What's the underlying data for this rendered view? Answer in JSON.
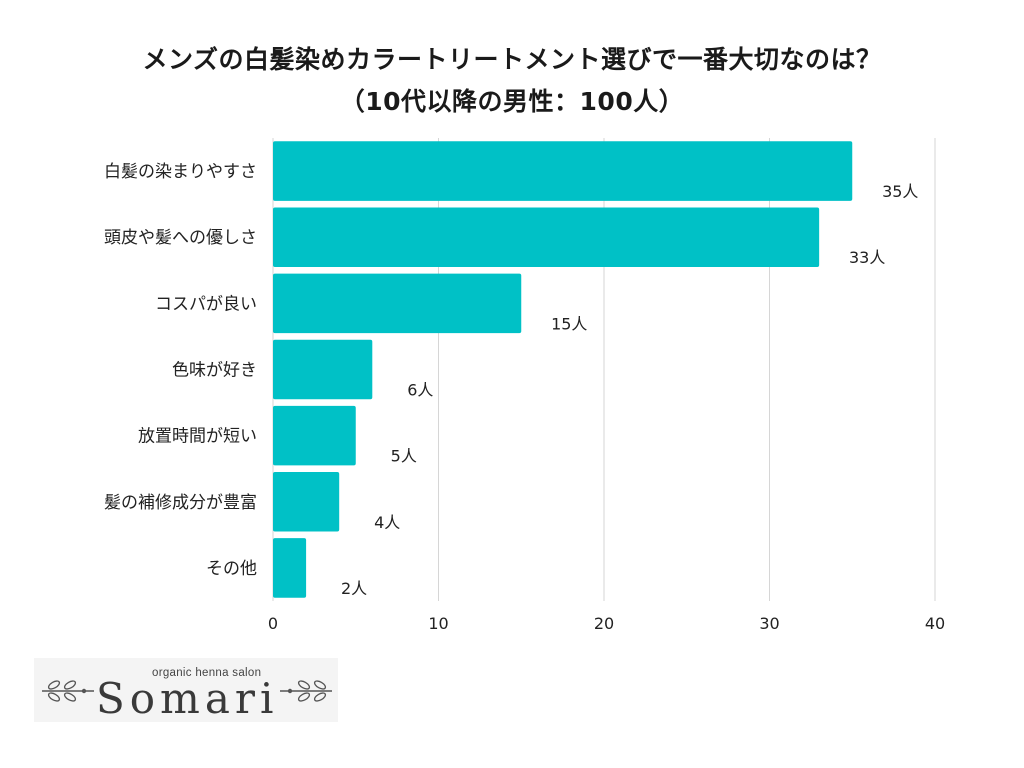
{
  "chart_data": {
    "type": "bar",
    "orientation": "horizontal",
    "title": "メンズの白髪染めカラートリートメント選びで一番大切なのは？",
    "subtitle": "（10代以降の男性：100人）",
    "categories": [
      "白髪の染まりやすさ",
      "頭皮や髪への優しさ",
      "コスパが良い",
      "色味が好き",
      "放置時間が短い",
      "髪の補修成分が豊富",
      "その他"
    ],
    "values": [
      35,
      33,
      15,
      6,
      5,
      4,
      2
    ],
    "value_labels": [
      "35人",
      "33人",
      "15人",
      "6人",
      "5人",
      "4人",
      "2人"
    ],
    "xlim": [
      0,
      40
    ],
    "xticks": [
      0,
      10,
      20,
      30,
      40
    ],
    "xtick_labels": [
      "0",
      "10",
      "20",
      "30",
      "40"
    ],
    "grid": true,
    "bar_color": "#00c1c6"
  },
  "logo": {
    "tagline": "organic henna salon",
    "wordmark": "Somari"
  }
}
